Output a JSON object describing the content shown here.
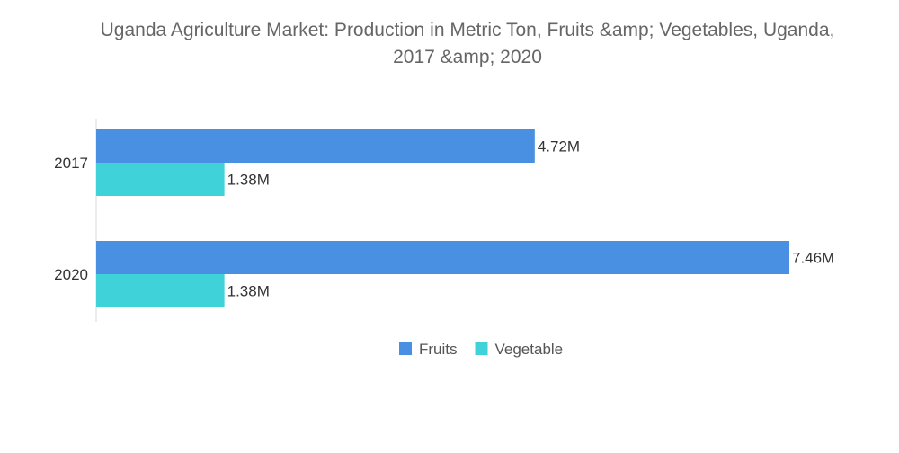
{
  "chart_data": {
    "type": "bar",
    "orientation": "horizontal",
    "title_lines": [
      "Uganda Agriculture Market: Production in Metric Ton, Fruits &amp; Vegetables, Uganda,",
      "2017 &amp; 2020"
    ],
    "categories": [
      "2017",
      "2020"
    ],
    "series": [
      {
        "name": "Fruits",
        "color": "#4a90e2",
        "values": [
          4.72,
          7.46
        ],
        "labels": [
          "4.72M",
          "7.46M"
        ]
      },
      {
        "name": "Vegetable",
        "color": "#3fd2d9",
        "values": [
          1.38,
          1.38
        ],
        "labels": [
          "1.38M",
          "1.38M"
        ]
      }
    ],
    "xlabel": "",
    "ylabel": "",
    "xlim": [
      0,
      7.46
    ],
    "unit": "M",
    "grid": false,
    "legend_position": "bottom-center"
  }
}
